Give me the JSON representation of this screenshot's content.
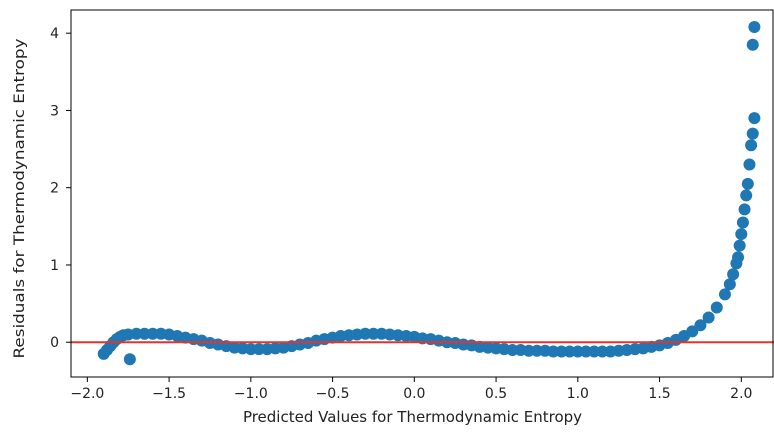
{
  "chart_data": {
    "type": "scatter",
    "title": "",
    "xlabel": "Predicted Values for Thermodynamic Entropy",
    "ylabel": "Residuals for Thermodynamic Entropy",
    "xlim": [
      -2.1,
      2.2
    ],
    "ylim": [
      -0.45,
      4.3
    ],
    "xticks": [
      -2.0,
      -1.5,
      -1.0,
      -0.5,
      0.0,
      0.5,
      1.0,
      1.5,
      2.0
    ],
    "xtick_labels": [
      "−2.0",
      "−1.5",
      "−1.0",
      "−0.5",
      "0.0",
      "0.5",
      "1.0",
      "1.5",
      "2.0"
    ],
    "yticks": [
      0,
      1,
      2,
      3,
      4
    ],
    "ytick_labels": [
      "0",
      "1",
      "2",
      "3",
      "4"
    ],
    "grid": false,
    "reference_line": {
      "y": 0,
      "color": "#e8332a"
    },
    "point_color": "#1f77b4",
    "series": [
      {
        "points": [
          [
            -1.9,
            -0.15
          ],
          [
            -1.88,
            -0.1
          ],
          [
            -1.86,
            -0.05
          ],
          [
            -1.84,
            0.0
          ],
          [
            -1.82,
            0.04
          ],
          [
            -1.8,
            0.07
          ],
          [
            -1.78,
            0.09
          ],
          [
            -1.75,
            0.1
          ],
          [
            -1.74,
            -0.22
          ],
          [
            -1.7,
            0.11
          ],
          [
            -1.65,
            0.11
          ],
          [
            -1.6,
            0.11
          ],
          [
            -1.55,
            0.11
          ],
          [
            -1.5,
            0.1
          ],
          [
            -1.45,
            0.08
          ],
          [
            -1.4,
            0.06
          ],
          [
            -1.35,
            0.04
          ],
          [
            -1.3,
            0.02
          ],
          [
            -1.25,
            -0.01
          ],
          [
            -1.2,
            -0.03
          ],
          [
            -1.15,
            -0.05
          ],
          [
            -1.1,
            -0.07
          ],
          [
            -1.05,
            -0.08
          ],
          [
            -1.0,
            -0.09
          ],
          [
            -0.95,
            -0.09
          ],
          [
            -0.9,
            -0.09
          ],
          [
            -0.85,
            -0.08
          ],
          [
            -0.8,
            -0.07
          ],
          [
            -0.75,
            -0.05
          ],
          [
            -0.7,
            -0.03
          ],
          [
            -0.65,
            -0.01
          ],
          [
            -0.6,
            0.02
          ],
          [
            -0.55,
            0.04
          ],
          [
            -0.5,
            0.06
          ],
          [
            -0.45,
            0.08
          ],
          [
            -0.4,
            0.09
          ],
          [
            -0.35,
            0.1
          ],
          [
            -0.3,
            0.11
          ],
          [
            -0.25,
            0.11
          ],
          [
            -0.2,
            0.11
          ],
          [
            -0.15,
            0.1
          ],
          [
            -0.1,
            0.09
          ],
          [
            -0.05,
            0.08
          ],
          [
            0.0,
            0.07
          ],
          [
            0.05,
            0.05
          ],
          [
            0.1,
            0.04
          ],
          [
            0.15,
            0.02
          ],
          [
            0.2,
            0.0
          ],
          [
            0.25,
            -0.01
          ],
          [
            0.3,
            -0.03
          ],
          [
            0.35,
            -0.04
          ],
          [
            0.4,
            -0.06
          ],
          [
            0.45,
            -0.07
          ],
          [
            0.5,
            -0.08
          ],
          [
            0.55,
            -0.09
          ],
          [
            0.6,
            -0.1
          ],
          [
            0.65,
            -0.1
          ],
          [
            0.7,
            -0.11
          ],
          [
            0.75,
            -0.11
          ],
          [
            0.8,
            -0.11
          ],
          [
            0.85,
            -0.12
          ],
          [
            0.9,
            -0.12
          ],
          [
            0.95,
            -0.12
          ],
          [
            1.0,
            -0.12
          ],
          [
            1.05,
            -0.12
          ],
          [
            1.1,
            -0.12
          ],
          [
            1.15,
            -0.12
          ],
          [
            1.2,
            -0.12
          ],
          [
            1.25,
            -0.11
          ],
          [
            1.3,
            -0.1
          ],
          [
            1.35,
            -0.09
          ],
          [
            1.4,
            -0.08
          ],
          [
            1.45,
            -0.06
          ],
          [
            1.5,
            -0.04
          ],
          [
            1.55,
            -0.01
          ],
          [
            1.6,
            0.03
          ],
          [
            1.65,
            0.08
          ],
          [
            1.7,
            0.14
          ],
          [
            1.75,
            0.22
          ],
          [
            1.8,
            0.32
          ],
          [
            1.85,
            0.45
          ],
          [
            1.9,
            0.62
          ],
          [
            1.93,
            0.75
          ],
          [
            1.95,
            0.88
          ],
          [
            1.97,
            1.02
          ],
          [
            1.98,
            1.1
          ],
          [
            1.99,
            1.25
          ],
          [
            2.0,
            1.4
          ],
          [
            2.01,
            1.55
          ],
          [
            2.02,
            1.72
          ],
          [
            2.03,
            1.9
          ],
          [
            2.04,
            2.05
          ],
          [
            2.05,
            2.3
          ],
          [
            2.06,
            2.55
          ],
          [
            2.07,
            2.7
          ],
          [
            2.08,
            2.9
          ],
          [
            2.07,
            3.85
          ],
          [
            2.08,
            4.08
          ]
        ]
      }
    ]
  }
}
